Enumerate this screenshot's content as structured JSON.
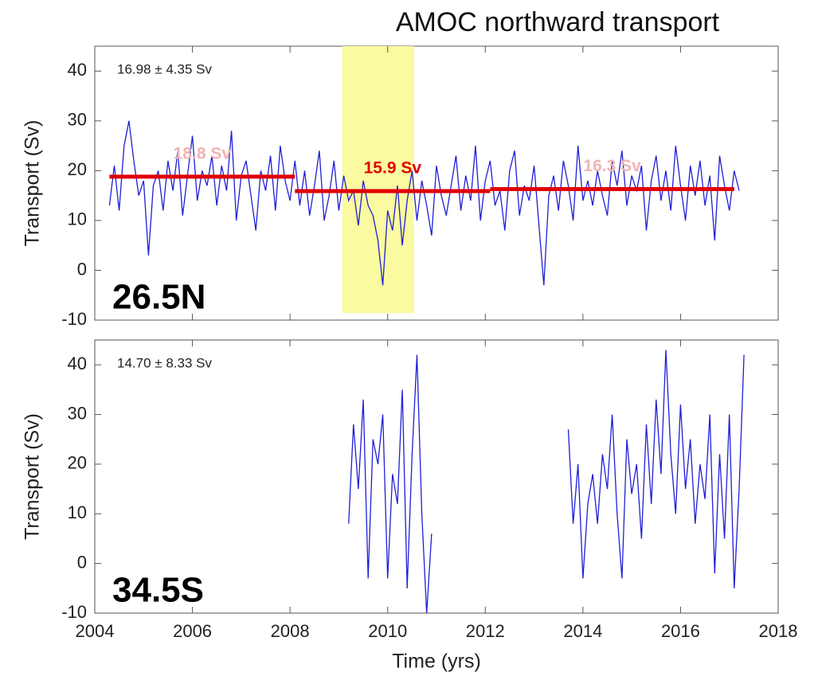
{
  "title": "AMOC northward transport",
  "chart_data": [
    {
      "type": "line",
      "ylabel": "Transport (Sv)",
      "panel_label": "26.5N",
      "stats": "16.98 ± 4.35 Sv",
      "xlim": [
        2004,
        2018
      ],
      "ylim": [
        -10,
        45
      ],
      "xticks": [
        2004,
        2006,
        2008,
        2010,
        2012,
        2014,
        2016,
        2018
      ],
      "show_xtick_labels": false,
      "yticks": [
        -10,
        0,
        10,
        20,
        30,
        40
      ],
      "highlight": {
        "x": [
          2009.07,
          2010.54
        ],
        "y": [
          -8.6,
          45
        ],
        "color": "#fafaa0"
      },
      "series": [
        {
          "color": "#1f1fd6",
          "x": [
            2004.3,
            2004.4,
            2004.5,
            2004.6,
            2004.7,
            2004.8,
            2004.9,
            2005.0,
            2005.1,
            2005.2,
            2005.3,
            2005.4,
            2005.5,
            2005.6,
            2005.7,
            2005.8,
            2005.9,
            2006.0,
            2006.1,
            2006.2,
            2006.3,
            2006.4,
            2006.5,
            2006.6,
            2006.7,
            2006.8,
            2006.9,
            2007.0,
            2007.1,
            2007.2,
            2007.3,
            2007.4,
            2007.5,
            2007.6,
            2007.7,
            2007.8,
            2007.9,
            2008.0,
            2008.1,
            2008.2,
            2008.3,
            2008.4,
            2008.5,
            2008.6,
            2008.7,
            2008.8,
            2008.9,
            2009.0,
            2009.1,
            2009.2,
            2009.3,
            2009.4,
            2009.5,
            2009.6,
            2009.7,
            2009.8,
            2009.9,
            2010.0,
            2010.1,
            2010.2,
            2010.3,
            2010.4,
            2010.5,
            2010.6,
            2010.7,
            2010.8,
            2010.9,
            2011.0,
            2011.1,
            2011.2,
            2011.3,
            2011.4,
            2011.5,
            2011.6,
            2011.7,
            2011.8,
            2011.9,
            2012.0,
            2012.1,
            2012.2,
            2012.3,
            2012.4,
            2012.5,
            2012.6,
            2012.7,
            2012.8,
            2012.9,
            2013.0,
            2013.1,
            2013.2,
            2013.3,
            2013.4,
            2013.5,
            2013.6,
            2013.7,
            2013.8,
            2013.9,
            2014.0,
            2014.1,
            2014.2,
            2014.3,
            2014.4,
            2014.5,
            2014.6,
            2014.7,
            2014.8,
            2014.9,
            2015.0,
            2015.1,
            2015.2,
            2015.3,
            2015.4,
            2015.5,
            2015.6,
            2015.7,
            2015.8,
            2015.9,
            2016.0,
            2016.1,
            2016.2,
            2016.3,
            2016.4,
            2016.5,
            2016.6,
            2016.7,
            2016.8,
            2016.9,
            2017.0,
            2017.1,
            2017.2
          ],
          "values": [
            13,
            21,
            12,
            25,
            30,
            22,
            15,
            18,
            3,
            17,
            20,
            12,
            22,
            16,
            24,
            11,
            19,
            27,
            14,
            20,
            17,
            23,
            13,
            21,
            16,
            28,
            10,
            19,
            22,
            15,
            8,
            20,
            16,
            23,
            12,
            25,
            18,
            14,
            22,
            13,
            20,
            11,
            17,
            24,
            10,
            15,
            22,
            12,
            19,
            14,
            16,
            9,
            18,
            13,
            11,
            6,
            -3,
            12,
            8,
            17,
            5,
            14,
            20,
            10,
            18,
            13,
            7,
            21,
            15,
            11,
            17,
            23,
            12,
            19,
            14,
            25,
            10,
            18,
            22,
            13,
            16,
            8,
            20,
            24,
            11,
            17,
            14,
            21,
            9,
            -3,
            15,
            19,
            12,
            22,
            17,
            10,
            25,
            14,
            18,
            13,
            20,
            15,
            11,
            22,
            17,
            24,
            13,
            19,
            16,
            21,
            8,
            18,
            23,
            14,
            20,
            12,
            25,
            17,
            10,
            21,
            15,
            22,
            13,
            19,
            6,
            23,
            17,
            12,
            20,
            16
          ]
        }
      ],
      "segments": [
        {
          "x": [
            2004.3,
            2008.1
          ],
          "value": 18.8,
          "label": "18.8 Sv",
          "color": "#e00000",
          "label_color": "#f2b3b3"
        },
        {
          "x": [
            2008.1,
            2012.1
          ],
          "value": 15.9,
          "label": "15.9 Sv",
          "color": "#e00000",
          "label_color": "#e00000"
        },
        {
          "x": [
            2012.1,
            2017.1
          ],
          "value": 16.3,
          "label": "16.3 Sv",
          "color": "#e00000",
          "label_color": "#f2b3b3"
        }
      ]
    },
    {
      "type": "line",
      "ylabel": "Transport (Sv)",
      "xlabel": "Time (yrs)",
      "panel_label": "34.5S",
      "stats": "14.70 ± 8.33 Sv",
      "xlim": [
        2004,
        2018
      ],
      "ylim": [
        -10,
        45
      ],
      "xticks": [
        2004,
        2006,
        2008,
        2010,
        2012,
        2014,
        2016,
        2018
      ],
      "show_xtick_labels": true,
      "yticks": [
        -10,
        0,
        10,
        20,
        30,
        40
      ],
      "series": [
        {
          "color": "#1f1fd6",
          "x": [
            2009.2,
            2009.3,
            2009.4,
            2009.5,
            2009.6,
            2009.7,
            2009.8,
            2009.9,
            2010.0,
            2010.1,
            2010.2,
            2010.3,
            2010.4,
            2010.5,
            2010.6,
            2010.7,
            2010.8,
            2010.9,
            2012.3,
            2013.7,
            2013.8,
            2013.9,
            2014.0,
            2014.1,
            2014.2,
            2014.3,
            2014.4,
            2014.5,
            2014.6,
            2014.7,
            2014.8,
            2014.9,
            2015.0,
            2015.1,
            2015.2,
            2015.3,
            2015.4,
            2015.5,
            2015.6,
            2015.7,
            2015.8,
            2015.9,
            2016.0,
            2016.1,
            2016.2,
            2016.3,
            2016.4,
            2016.5,
            2016.6,
            2016.7,
            2016.8,
            2016.9,
            2017.0,
            2017.1,
            2017.2,
            2017.3
          ],
          "values": [
            8,
            28,
            15,
            33,
            -3,
            25,
            20,
            30,
            -3,
            18,
            12,
            35,
            -5,
            22,
            42,
            10,
            -10,
            6,
            null,
            27,
            8,
            20,
            -3,
            12,
            18,
            8,
            22,
            15,
            30,
            10,
            -3,
            25,
            14,
            20,
            5,
            28,
            12,
            33,
            18,
            43,
            22,
            10,
            32,
            15,
            25,
            8,
            20,
            13,
            30,
            -2,
            22,
            5,
            30,
            -5,
            15,
            42
          ]
        }
      ]
    }
  ]
}
